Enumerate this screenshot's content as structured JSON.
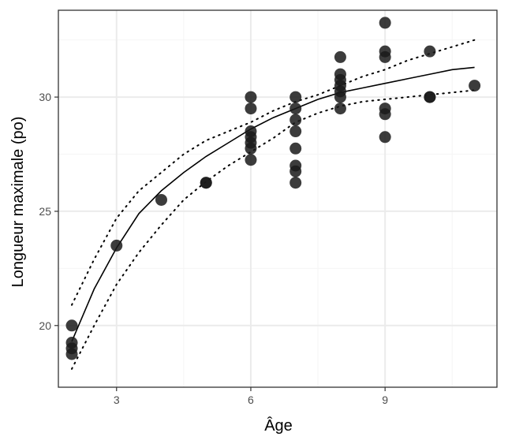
{
  "chart_data": {
    "type": "scatter",
    "title": "",
    "xlabel": "Âge",
    "ylabel": "Longueur maximale (po)",
    "xlim": [
      1.7,
      11.5
    ],
    "ylim": [
      17.3,
      33.8
    ],
    "x_ticks": [
      3,
      6,
      9
    ],
    "x_tick_labels": [
      "3",
      "6",
      "9"
    ],
    "y_ticks": [
      20,
      25,
      30
    ],
    "y_tick_labels": [
      "20",
      "25",
      "30"
    ],
    "x_minor_ticks": [
      4.5,
      7.5,
      10.5
    ],
    "y_minor_ticks": [
      22.5,
      27.5,
      32.5
    ],
    "grid": true,
    "legend": "none",
    "colors": {
      "points": "#1a1a1a",
      "fit_line": "#000000",
      "grid_major": "#ebebeb",
      "grid_minor": "#f5f5f5",
      "panel_border": "#333333"
    },
    "points": [
      {
        "x": 2,
        "y": 20.0
      },
      {
        "x": 2,
        "y": 19.25
      },
      {
        "x": 2,
        "y": 19.0
      },
      {
        "x": 2,
        "y": 18.75
      },
      {
        "x": 3,
        "y": 23.5
      },
      {
        "x": 4,
        "y": 25.5
      },
      {
        "x": 5,
        "y": 26.25
      },
      {
        "x": 5,
        "y": 26.25
      },
      {
        "x": 6,
        "y": 30.0
      },
      {
        "x": 6,
        "y": 29.5
      },
      {
        "x": 6,
        "y": 28.5
      },
      {
        "x": 6,
        "y": 28.25
      },
      {
        "x": 6,
        "y": 28.0
      },
      {
        "x": 6,
        "y": 27.75
      },
      {
        "x": 6,
        "y": 27.25
      },
      {
        "x": 7,
        "y": 30.0
      },
      {
        "x": 7,
        "y": 29.5
      },
      {
        "x": 7,
        "y": 29.0
      },
      {
        "x": 7,
        "y": 28.5
      },
      {
        "x": 7,
        "y": 27.75
      },
      {
        "x": 7,
        "y": 27.0
      },
      {
        "x": 7,
        "y": 26.75
      },
      {
        "x": 7,
        "y": 26.25
      },
      {
        "x": 8,
        "y": 31.75
      },
      {
        "x": 8,
        "y": 31.0
      },
      {
        "x": 8,
        "y": 30.75
      },
      {
        "x": 8,
        "y": 30.5
      },
      {
        "x": 8,
        "y": 30.25
      },
      {
        "x": 8,
        "y": 30.0
      },
      {
        "x": 8,
        "y": 29.5
      },
      {
        "x": 9,
        "y": 33.25
      },
      {
        "x": 9,
        "y": 32.0
      },
      {
        "x": 9,
        "y": 31.75
      },
      {
        "x": 9,
        "y": 29.5
      },
      {
        "x": 9,
        "y": 29.25
      },
      {
        "x": 9,
        "y": 28.25
      },
      {
        "x": 10,
        "y": 32.0
      },
      {
        "x": 10,
        "y": 30.0
      },
      {
        "x": 10,
        "y": 30.0
      },
      {
        "x": 11,
        "y": 30.5
      }
    ],
    "fit_curve": {
      "style": "solid",
      "x": [
        2,
        2.5,
        3,
        3.5,
        4,
        4.5,
        5,
        5.5,
        6,
        6.5,
        7,
        7.5,
        8,
        8.5,
        9,
        9.5,
        10,
        10.5,
        11
      ],
      "y": [
        19.3,
        21.6,
        23.4,
        24.9,
        25.9,
        26.7,
        27.4,
        28.0,
        28.6,
        29.1,
        29.5,
        29.9,
        30.2,
        30.4,
        30.6,
        30.8,
        31.0,
        31.2,
        31.3
      ]
    },
    "upper_band": {
      "style": "dotted",
      "x": [
        2,
        2.5,
        3,
        3.5,
        4,
        4.5,
        5,
        5.5,
        6,
        6.5,
        7,
        7.5,
        8,
        8.5,
        9,
        9.5,
        10,
        10.5,
        11
      ],
      "y": [
        20.9,
        22.9,
        24.7,
        25.9,
        26.7,
        27.5,
        28.1,
        28.5,
        28.9,
        29.4,
        29.8,
        30.1,
        30.5,
        30.9,
        31.2,
        31.6,
        31.9,
        32.2,
        32.5
      ]
    },
    "lower_band": {
      "style": "dotted",
      "x": [
        2,
        2.5,
        3,
        3.5,
        4,
        4.5,
        5,
        5.5,
        6,
        6.5,
        7,
        7.5,
        8,
        8.5,
        9,
        9.5,
        10,
        10.5,
        11
      ],
      "y": [
        18.1,
        20.0,
        21.8,
        23.2,
        24.4,
        25.5,
        26.3,
        27.0,
        27.6,
        28.2,
        28.9,
        29.3,
        29.6,
        29.8,
        29.9,
        30.0,
        30.1,
        30.2,
        30.3
      ]
    }
  }
}
